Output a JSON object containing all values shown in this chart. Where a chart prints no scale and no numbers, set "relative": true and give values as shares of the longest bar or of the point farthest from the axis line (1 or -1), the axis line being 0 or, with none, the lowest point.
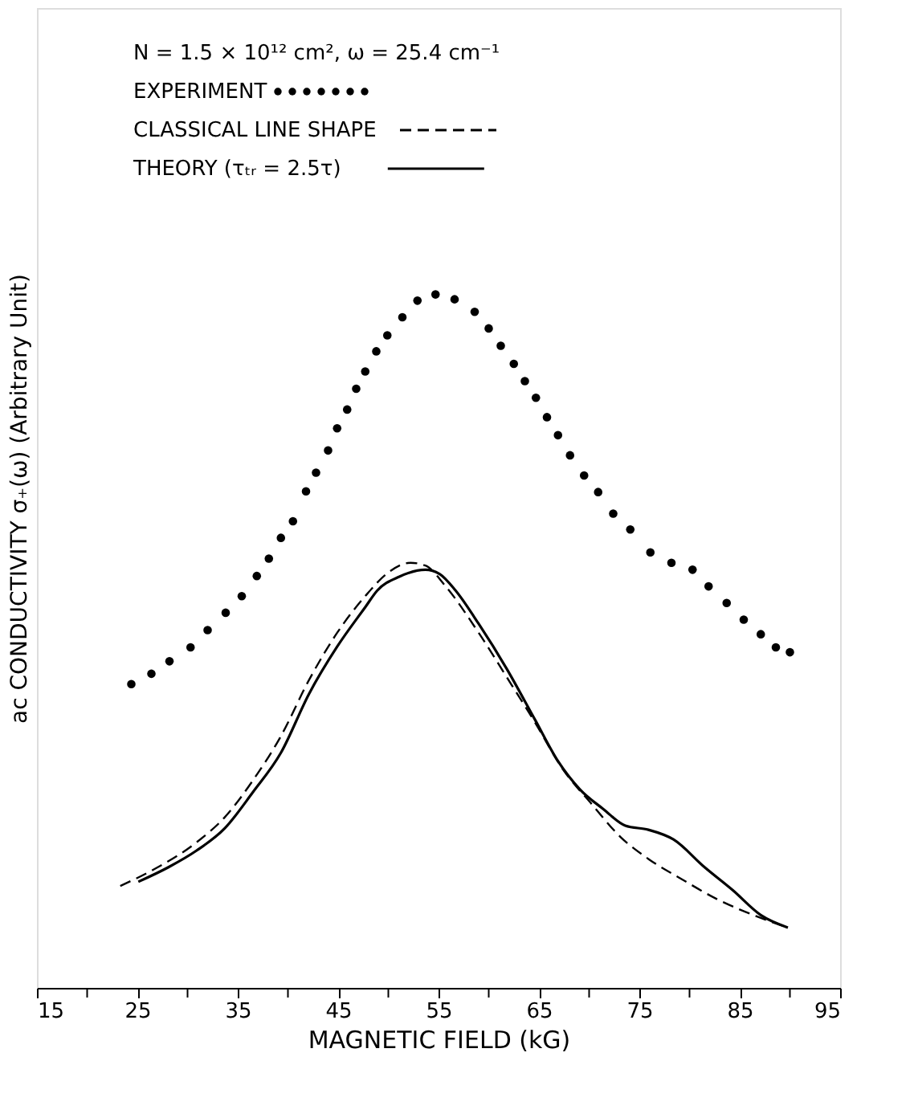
{
  "chart_data": {
    "type": "line",
    "relative": true,
    "legend_title": "N = 1.5 × 10¹² cm², ω = 25.4 cm⁻¹",
    "xlabel": "MAGNETIC FIELD   (kG)",
    "ylabel": "ac CONDUCTIVITY σ₊(ω)  (Arbitrary Unit)",
    "xlim": [
      15,
      95
    ],
    "xticks": [
      15,
      {
        "value": 20,
        "label": null
      },
      25,
      {
        "value": 30,
        "label": null
      },
      35,
      {
        "value": 40,
        "label": null
      },
      45,
      {
        "value": 50,
        "label": null
      },
      55,
      {
        "value": 60,
        "label": null
      },
      65,
      {
        "value": 70,
        "label": null
      },
      75,
      {
        "value": 80,
        "label": null
      },
      85,
      {
        "value": 90,
        "label": null
      },
      95
    ],
    "grid": false,
    "legend": "top left",
    "series": [
      {
        "name": "EXPERIMENT",
        "type": "scatter",
        "marker": "circle",
        "color": "#000000",
        "x": [
          24.4,
          26.4,
          28.2,
          30.3,
          32.0,
          33.8,
          35.4,
          36.9,
          38.1,
          39.3,
          40.5,
          41.8,
          42.8,
          44.0,
          44.9,
          45.9,
          46.8,
          47.7,
          48.8,
          49.9,
          51.4,
          52.9,
          54.7,
          56.6,
          58.6,
          60.0,
          61.2,
          62.5,
          63.6,
          64.7,
          65.8,
          66.9,
          68.1,
          69.5,
          70.9,
          72.4,
          74.1,
          76.1,
          78.2,
          80.3,
          81.9,
          83.7,
          85.4,
          87.1,
          88.6,
          90.0
        ],
        "values": [
          0.438,
          0.453,
          0.471,
          0.491,
          0.516,
          0.541,
          0.565,
          0.594,
          0.619,
          0.649,
          0.673,
          0.716,
          0.743,
          0.775,
          0.807,
          0.834,
          0.864,
          0.889,
          0.918,
          0.941,
          0.967,
          0.991,
          1.0,
          0.993,
          0.975,
          0.951,
          0.926,
          0.9,
          0.875,
          0.851,
          0.823,
          0.797,
          0.768,
          0.739,
          0.715,
          0.684,
          0.661,
          0.628,
          0.613,
          0.603,
          0.579,
          0.555,
          0.531,
          0.51,
          0.491,
          0.484
        ]
      },
      {
        "name": "CLASSICAL LINE SHAPE",
        "line_style": "dashed",
        "color": "#000000",
        "x": [
          23.3,
          26.4,
          30.9,
          33.7,
          36.5,
          39.3,
          42.1,
          44.9,
          47.7,
          50.0,
          52.2,
          53.7,
          55.6,
          59.0,
          61.8,
          64.6,
          67.4,
          70.2,
          73.1,
          75.9,
          79.2,
          82.6,
          87.1,
          89.8
        ],
        "values": [
          0.147,
          0.169,
          0.21,
          0.246,
          0.299,
          0.363,
          0.444,
          0.512,
          0.565,
          0.599,
          0.613,
          0.609,
          0.581,
          0.512,
          0.448,
          0.383,
          0.315,
          0.266,
          0.218,
          0.186,
          0.157,
          0.129,
          0.101,
          0.087
        ]
      },
      {
        "name": "THEORY (τₜᵣ = 2.5τ)",
        "line_style": "solid",
        "color": "#000000",
        "x": [
          25.1,
          28.1,
          30.9,
          33.7,
          36.5,
          39.3,
          42.1,
          44.9,
          47.7,
          48.9,
          51.1,
          53.7,
          55.1,
          56.7,
          59.0,
          61.8,
          64.6,
          66.9,
          69.1,
          71.4,
          73.6,
          75.9,
          78.4,
          81.5,
          84.3,
          87.1,
          89.8
        ],
        "values": [
          0.153,
          0.174,
          0.198,
          0.23,
          0.282,
          0.339,
          0.424,
          0.492,
          0.549,
          0.573,
          0.593,
          0.603,
          0.597,
          0.573,
          0.525,
          0.46,
          0.387,
          0.327,
          0.286,
          0.258,
          0.234,
          0.228,
          0.214,
          0.174,
          0.141,
          0.105,
          0.087
        ]
      }
    ]
  }
}
